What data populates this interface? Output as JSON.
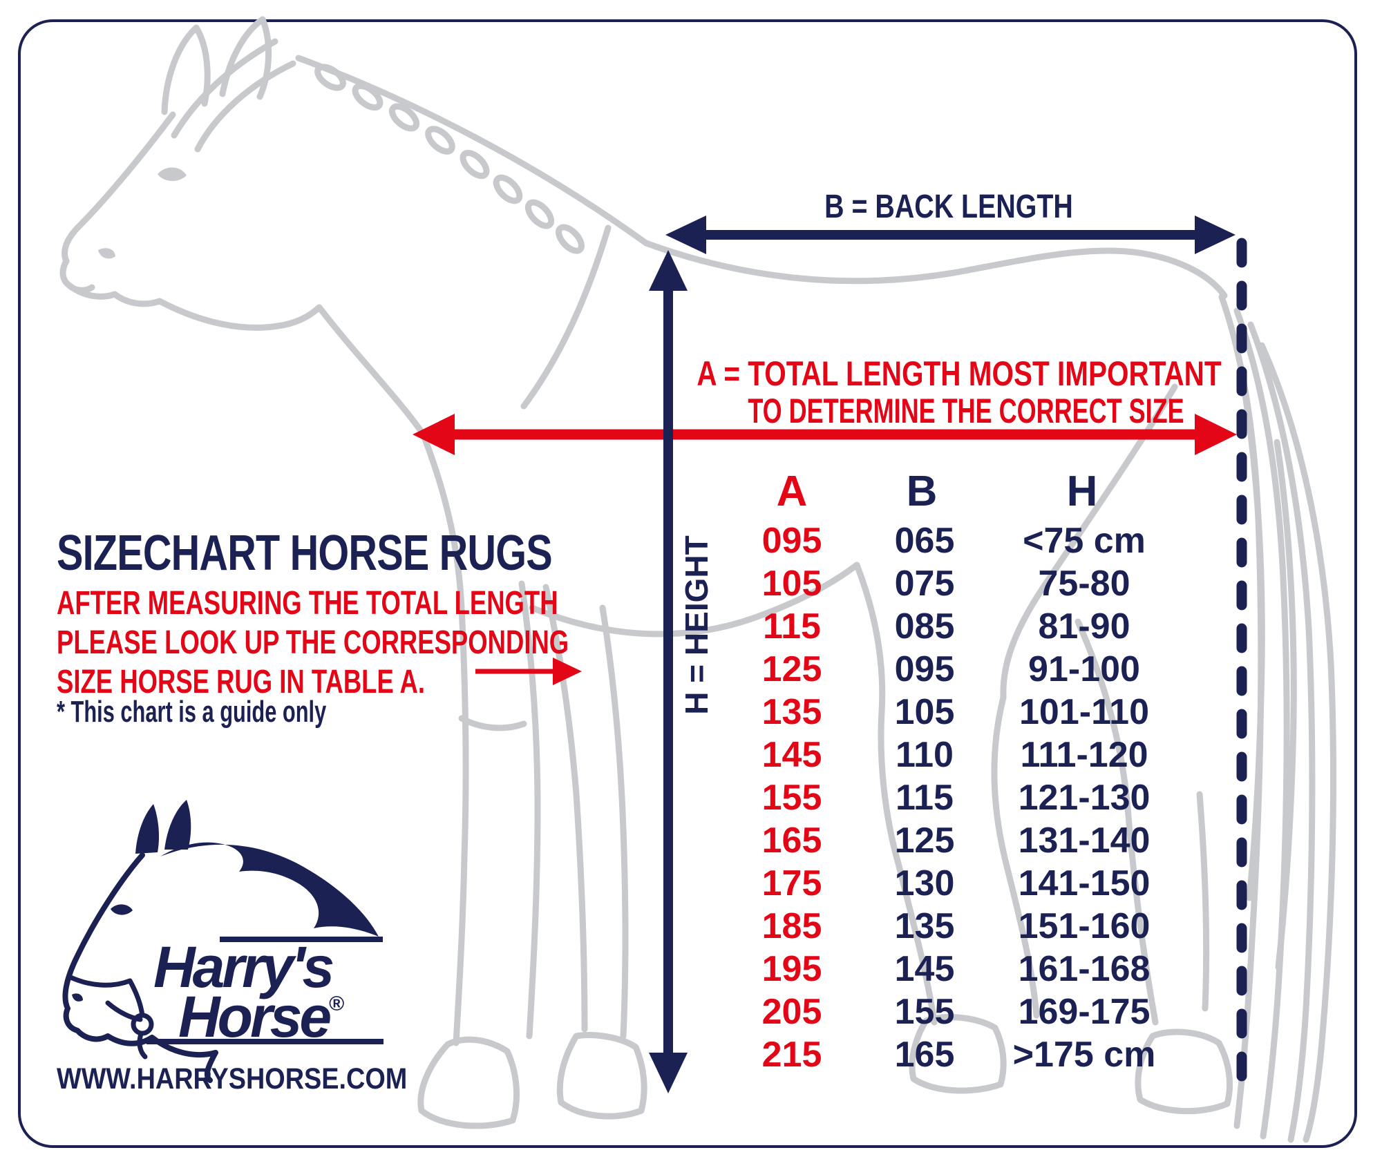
{
  "colors": {
    "accent_red": "#e30617",
    "brand_navy": "#1c2153",
    "horse_outline_gray": "#c7c9cd",
    "background": "#ffffff"
  },
  "diagram": {
    "b_label": "B = BACK LENGTH",
    "a_label_line1": "A = TOTAL LENGTH MOST IMPORTANT",
    "a_label_line2": "TO DETERMINE THE CORRECT SIZE",
    "h_label": "H = HEIGHT"
  },
  "info": {
    "title": "SIZECHART HORSE RUGS",
    "line1": "AFTER MEASURING THE TOTAL LENGTH",
    "line2": "PLEASE LOOK UP THE CORRESPONDING",
    "line3": "SIZE HORSE RUG IN TABLE A.",
    "note": "* This chart is a guide only"
  },
  "table": {
    "headers": [
      "A",
      "B",
      "H"
    ],
    "rows": [
      [
        "095",
        "065",
        "<75 cm"
      ],
      [
        "105",
        "075",
        "75-80"
      ],
      [
        "115",
        "085",
        "81-90"
      ],
      [
        "125",
        "095",
        "91-100"
      ],
      [
        "135",
        "105",
        "101-110"
      ],
      [
        "145",
        "110",
        "111-120"
      ],
      [
        "155",
        "115",
        "121-130"
      ],
      [
        "165",
        "125",
        "131-140"
      ],
      [
        "175",
        "130",
        "141-150"
      ],
      [
        "185",
        "135",
        "151-160"
      ],
      [
        "195",
        "145",
        "161-168"
      ],
      [
        "205",
        "155",
        "169-175"
      ],
      [
        "215",
        "165",
        ">175 cm"
      ]
    ]
  },
  "brand": {
    "line1": "Harry's",
    "line2": "Horse",
    "reg": "®",
    "website": "WWW.HARRYSHORSE.COM"
  }
}
